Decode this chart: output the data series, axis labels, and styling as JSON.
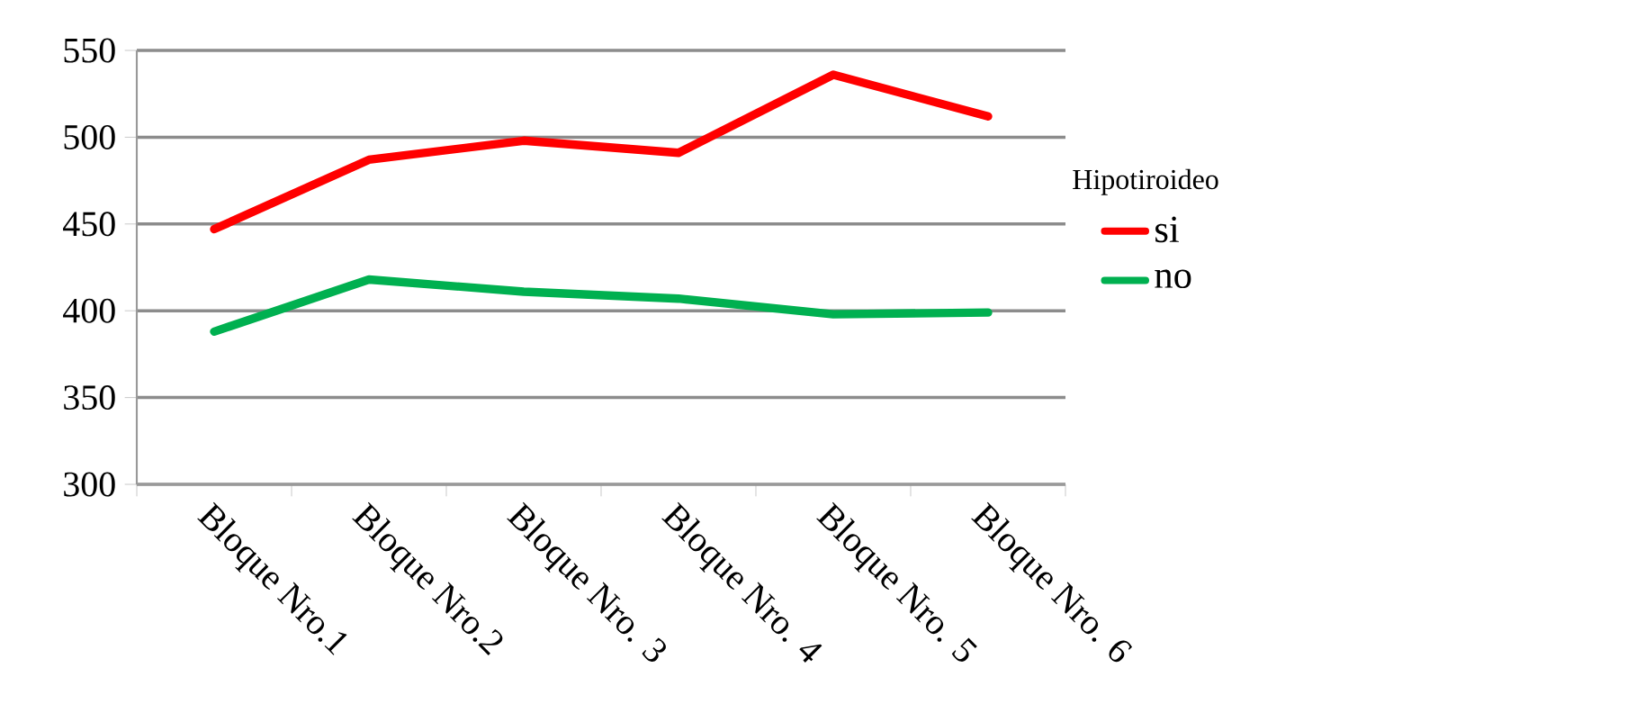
{
  "chart_data": {
    "type": "line",
    "categories": [
      "Bloque Nro.1",
      "Bloque Nro.2",
      "Bloque Nro. 3",
      "Bloque Nro. 4",
      "Bloque Nro. 5",
      "Bloque Nro. 6"
    ],
    "series": [
      {
        "name": "si",
        "color": "#ff0000",
        "values": [
          447,
          487,
          498,
          491,
          536,
          512
        ]
      },
      {
        "name": "no",
        "color": "#00b050",
        "values": [
          388,
          418,
          411,
          407,
          398,
          399
        ]
      }
    ],
    "legend_title": "Hipotiroideo",
    "legend": "right",
    "ylim": [
      300,
      550
    ],
    "yticks": [
      300,
      350,
      400,
      450,
      500,
      550
    ],
    "grid": "y",
    "marker": "none",
    "line_style": "solid"
  }
}
